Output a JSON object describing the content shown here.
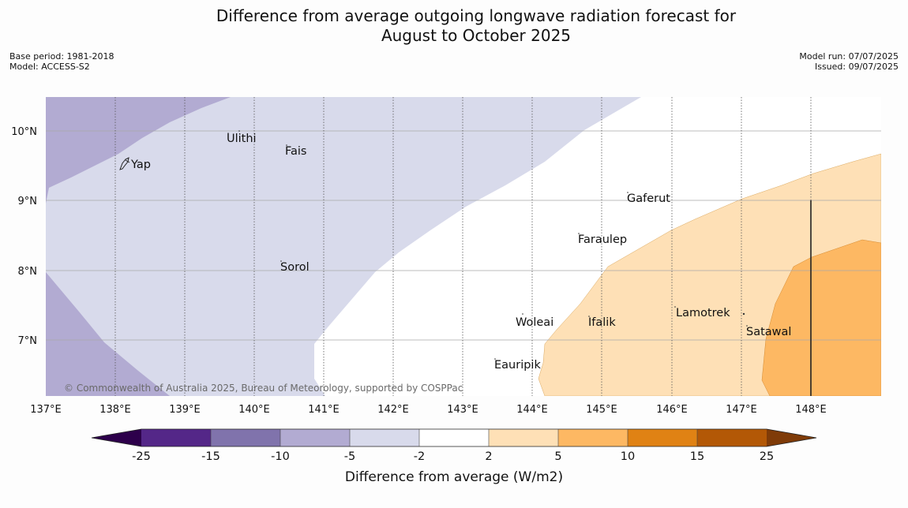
{
  "title_line1": "Difference from average outgoing longwave radiation forecast for",
  "title_line2": "August to October 2025",
  "meta_left": [
    "Base period: 1981-2018",
    "Model: ACCESS-S2"
  ],
  "meta_right": [
    "Model run: 07/07/2025",
    "Issued: 09/07/2025"
  ],
  "credit": "© Commonwealth of Australia 2025, Bureau of Meteorology, supported by COSPPac",
  "x_ticks": [
    "137°E",
    "138°E",
    "139°E",
    "140°E",
    "141°E",
    "142°E",
    "143°E",
    "144°E",
    "145°E",
    "146°E",
    "147°E",
    "148°E"
  ],
  "y_ticks": [
    "10°N",
    "9°N",
    "8°N",
    "7°N"
  ],
  "places": [
    {
      "name": "Yap"
    },
    {
      "name": "Ulithi"
    },
    {
      "name": "Fais"
    },
    {
      "name": "Gaferut"
    },
    {
      "name": "Faraulep"
    },
    {
      "name": "Sorol"
    },
    {
      "name": "Woleai"
    },
    {
      "name": "Ifalik"
    },
    {
      "name": "Lamotrek"
    },
    {
      "name": "Satawal"
    },
    {
      "name": "Eauripik"
    }
  ],
  "colorbar": {
    "title": "Difference from average (W/m2)",
    "ticks": [
      "-25",
      "-15",
      "-10",
      "-5",
      "-2",
      "2",
      "5",
      "10",
      "15",
      "25"
    ],
    "colors": [
      "#2d004b",
      "#542788",
      "#8073ac",
      "#b2abd2",
      "#d8daeb",
      "#ffffff",
      "#fee0b6",
      "#fdb863",
      "#e08214",
      "#b35806",
      "#7f3b08"
    ]
  }
}
